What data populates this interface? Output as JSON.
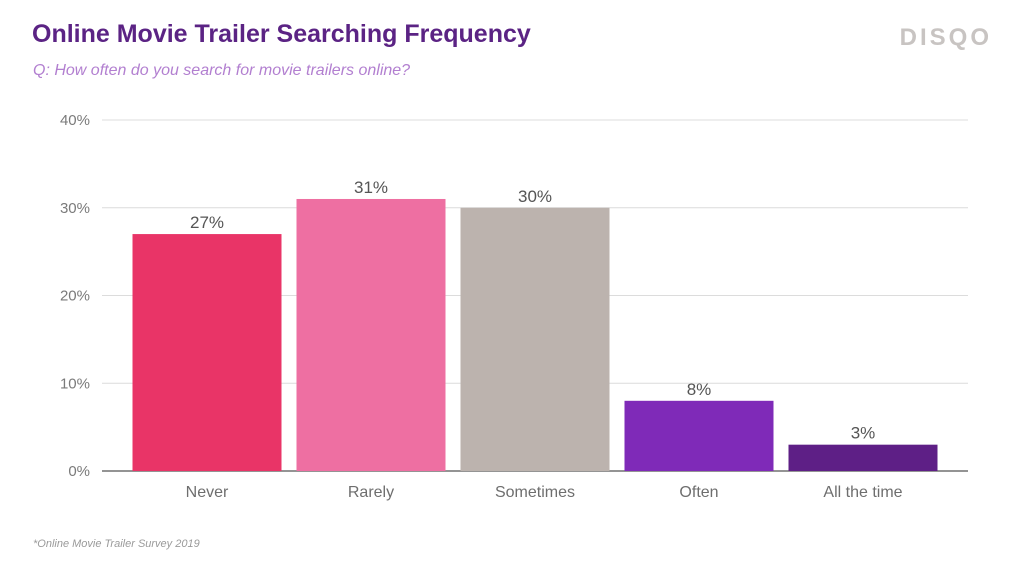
{
  "title": "Online Movie Trailer Searching Frequency",
  "subtitle": "Q: How often do you search for movie trailers online?",
  "logo_text": "DISQO",
  "footnote": "*Online Movie Trailer Survey 2019",
  "chart_data": {
    "type": "bar",
    "title": "Online Movie Trailer Searching Frequency",
    "categories": [
      "Never",
      "Rarely",
      "Sometimes",
      "Often",
      "All the time"
    ],
    "values": [
      27,
      31,
      30,
      8,
      3
    ],
    "data_labels": [
      "27%",
      "31%",
      "30%",
      "8%",
      "3%"
    ],
    "colors": [
      "#e93467",
      "#ee6fa2",
      "#bcb3ae",
      "#7f2ab8",
      "#5e1f86"
    ],
    "ylim": [
      0,
      40
    ],
    "yticks": [
      0,
      10,
      20,
      30,
      40
    ],
    "ytick_labels": [
      "0%",
      "10%",
      "20%",
      "30%",
      "40%"
    ],
    "grid": true,
    "legend": "none"
  }
}
